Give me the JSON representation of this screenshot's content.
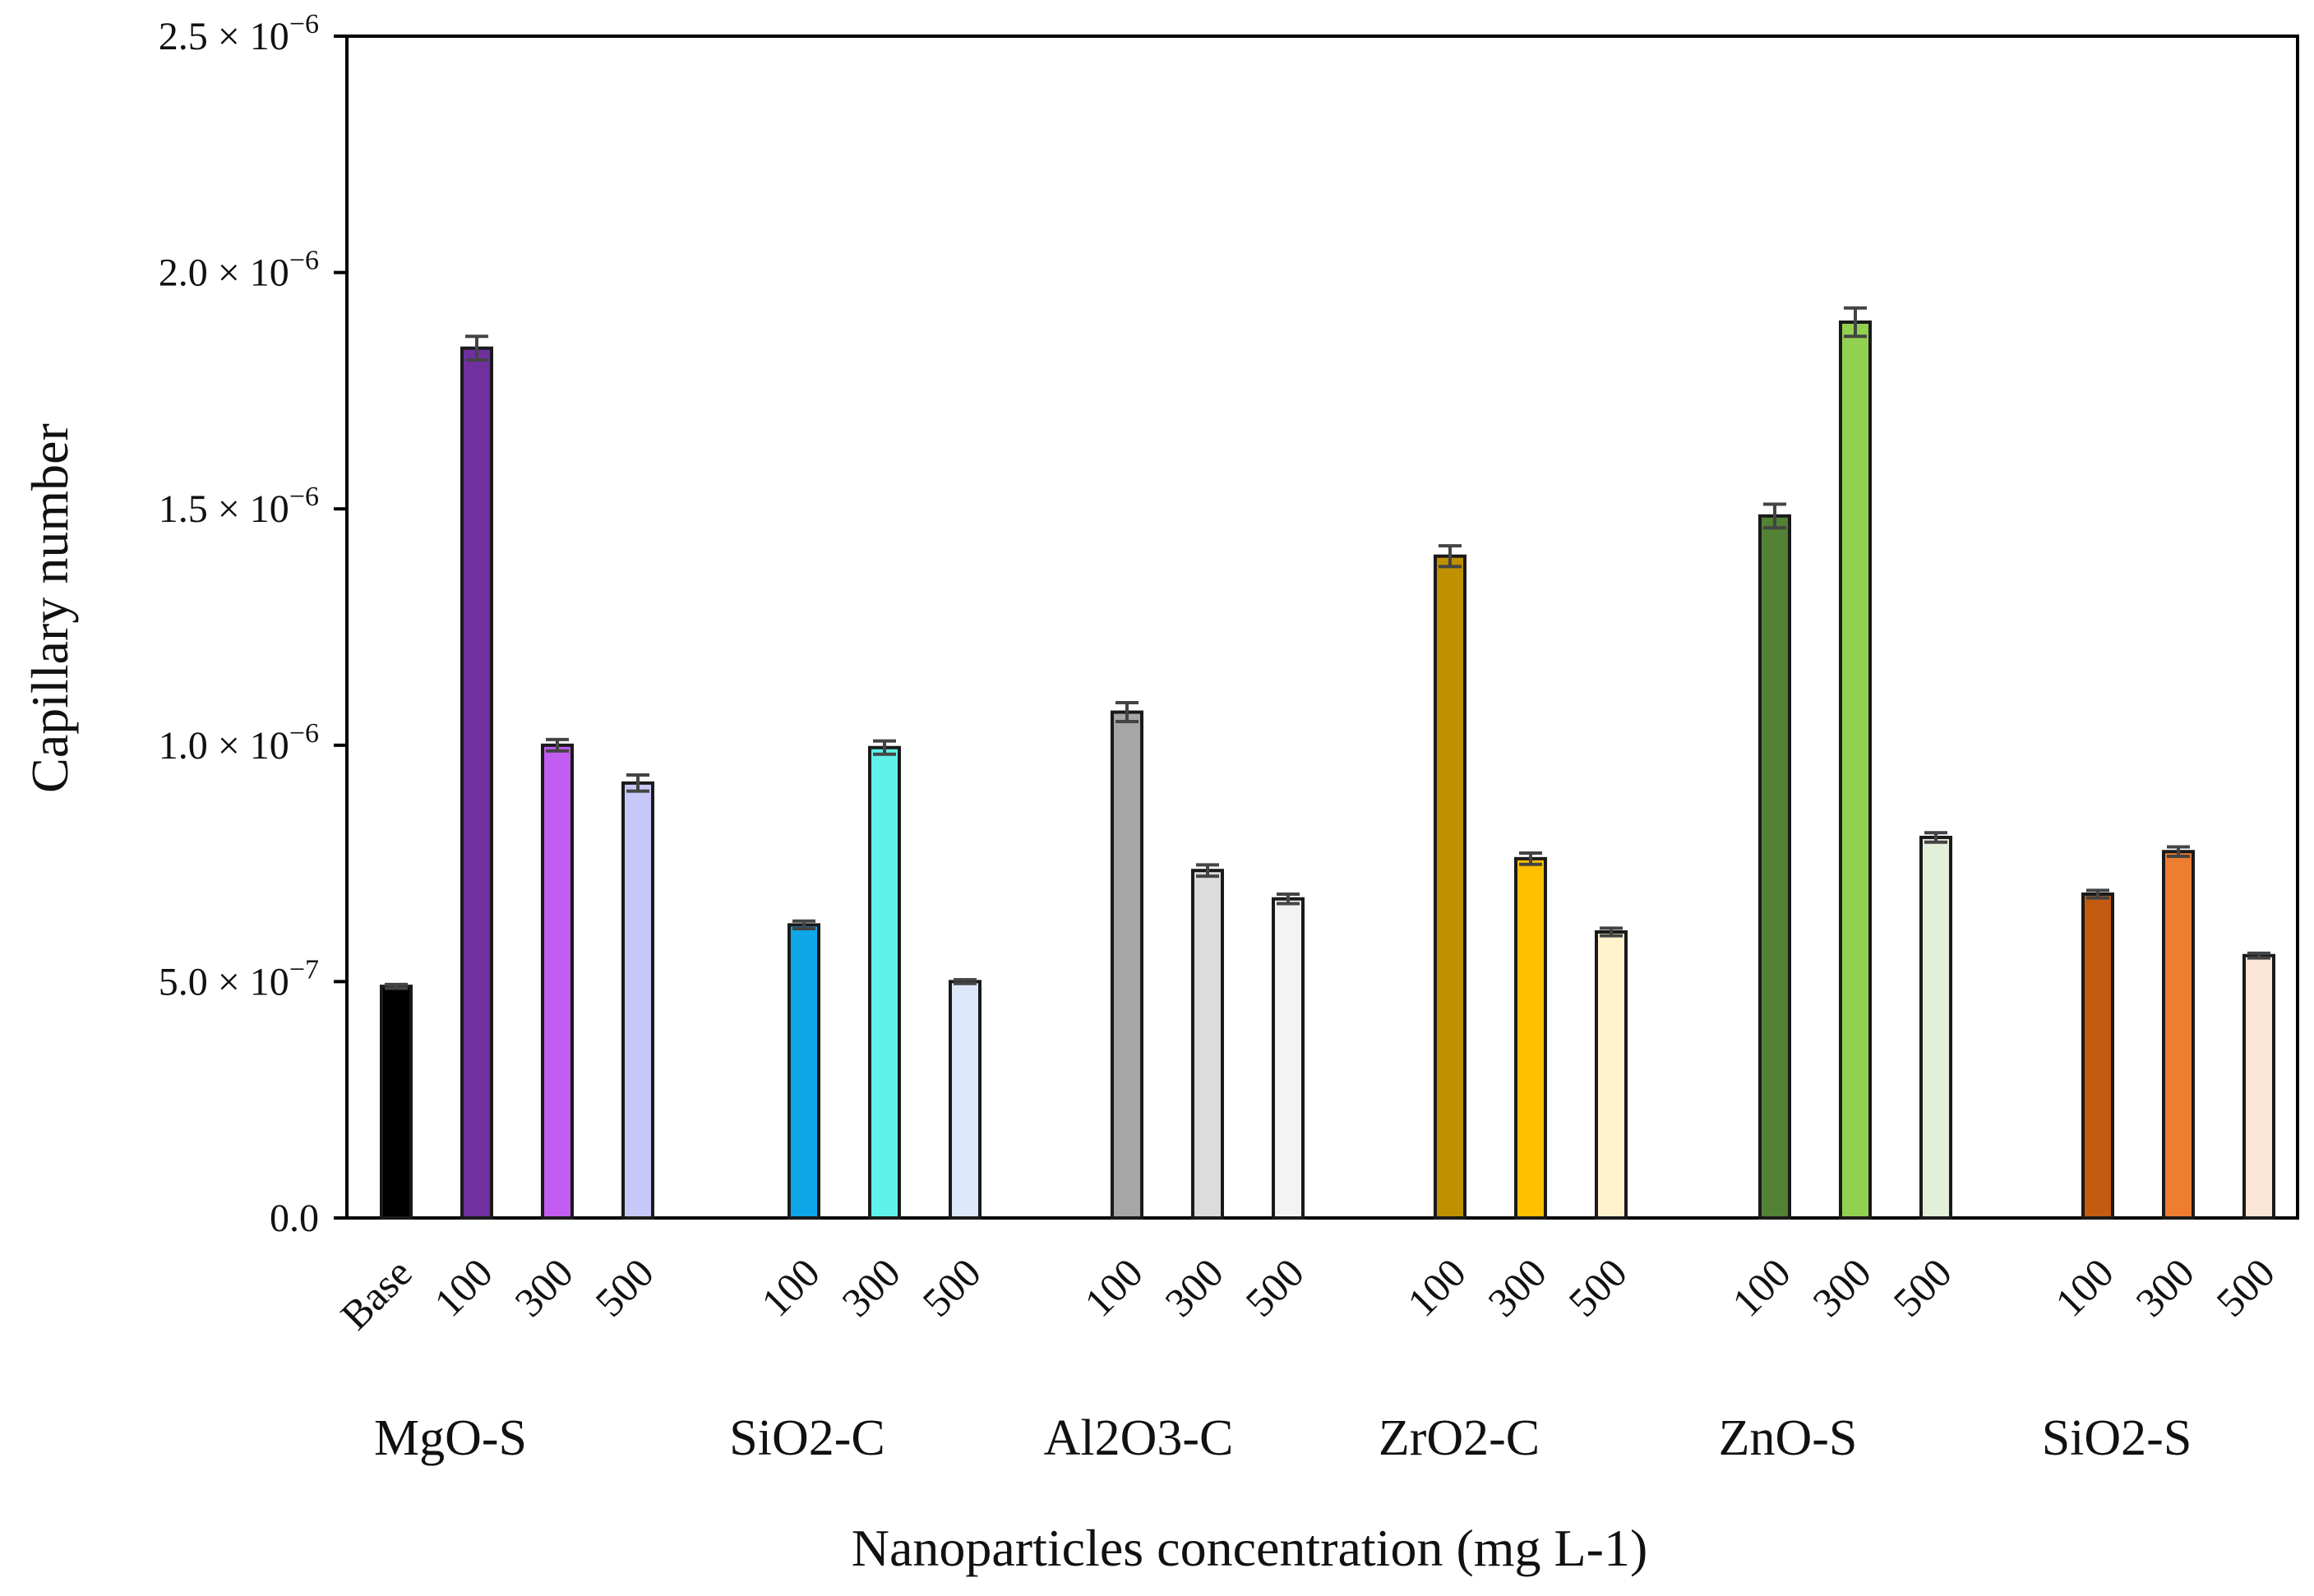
{
  "chart_data": {
    "type": "bar",
    "title": "",
    "ylabel": "Capillary number",
    "xlabel": "Nanoparticles concentration (mg L-1)",
    "ylim": [
      0,
      2.5e-06
    ],
    "yticks": [
      {
        "value": 0,
        "label": "0.0"
      },
      {
        "value": 5e-07,
        "mantissa": "5.0",
        "exponent": "−7"
      },
      {
        "value": 1e-06,
        "mantissa": "1.0",
        "exponent": "−6"
      },
      {
        "value": 1.5e-06,
        "mantissa": "1.5",
        "exponent": "−6"
      },
      {
        "value": 2e-06,
        "mantissa": "2.0",
        "exponent": "−6"
      },
      {
        "value": 2.5e-06,
        "mantissa": "2.5",
        "exponent": "−6"
      }
    ],
    "times_symbol": "×",
    "power_base": "10",
    "groups": [
      {
        "name": "MgO-S",
        "bars": [
          {
            "label": "Base",
            "value": 4.9e-07,
            "error": 4e-09,
            "color": "#000000"
          },
          {
            "label": "100",
            "value": 1.84e-06,
            "error": 2.5e-08,
            "color": "#7030a0"
          },
          {
            "label": "300",
            "value": 1e-06,
            "error": 1.2e-08,
            "color": "#c35cf0"
          },
          {
            "label": "500",
            "value": 9.2e-07,
            "error": 1.7e-08,
            "color": "#c8c8f8"
          }
        ]
      },
      {
        "name": "SiO2-C",
        "bars": [
          {
            "label": "100",
            "value": 6.2e-07,
            "error": 8e-09,
            "color": "#0ea5e9"
          },
          {
            "label": "300",
            "value": 9.95e-07,
            "error": 1.4e-08,
            "color": "#5ff2ea"
          },
          {
            "label": "500",
            "value": 5e-07,
            "error": 4e-09,
            "color": "#dde9fb"
          }
        ]
      },
      {
        "name": "Al2O3-C",
        "bars": [
          {
            "label": "100",
            "value": 1.07e-06,
            "error": 2e-08,
            "color": "#a6a6a6"
          },
          {
            "label": "300",
            "value": 7.35e-07,
            "error": 1.2e-08,
            "color": "#dcdcdc"
          },
          {
            "label": "500",
            "value": 6.75e-07,
            "error": 1e-08,
            "color": "#f3f3f3"
          }
        ]
      },
      {
        "name": "ZrO2-C",
        "bars": [
          {
            "label": "100",
            "value": 1.4e-06,
            "error": 2.2e-08,
            "color": "#bf9000"
          },
          {
            "label": "300",
            "value": 7.6e-07,
            "error": 1.2e-08,
            "color": "#ffc000"
          },
          {
            "label": "500",
            "value": 6.05e-07,
            "error": 8e-09,
            "color": "#fff2cc"
          }
        ]
      },
      {
        "name": "ZnO-S",
        "bars": [
          {
            "label": "100",
            "value": 1.485e-06,
            "error": 2.5e-08,
            "color": "#538135"
          },
          {
            "label": "300",
            "value": 1.895e-06,
            "error": 3e-08,
            "color": "#92d050"
          },
          {
            "label": "500",
            "value": 8.05e-07,
            "error": 1e-08,
            "color": "#e2efd9"
          }
        ]
      },
      {
        "name": "SiO2-S",
        "bars": [
          {
            "label": "100",
            "value": 6.85e-07,
            "error": 8e-09,
            "color": "#c55a11"
          },
          {
            "label": "300",
            "value": 7.75e-07,
            "error": 1e-08,
            "color": "#ed7d31"
          },
          {
            "label": "500",
            "value": 5.55e-07,
            "error": 5e-09,
            "color": "#fbe5d6"
          }
        ]
      }
    ],
    "grid": false,
    "legend": "none"
  }
}
